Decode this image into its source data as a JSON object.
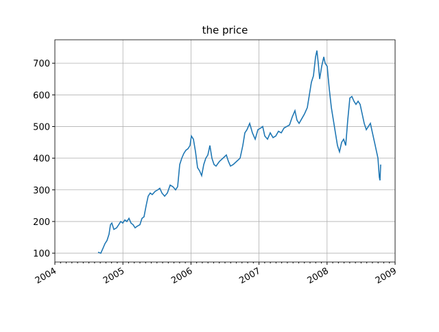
{
  "chart_data": {
    "type": "line",
    "title": "the price",
    "x": [
      2004.635,
      2004.675,
      2004.706,
      2004.736,
      2004.766,
      2004.796,
      2004.817,
      2004.837,
      2004.867,
      2004.907,
      2004.938,
      2004.968,
      2004.998,
      2005.028,
      2005.058,
      2005.089,
      2005.119,
      2005.149,
      2005.179,
      2005.21,
      2005.25,
      2005.28,
      2005.31,
      2005.341,
      2005.371,
      2005.401,
      2005.431,
      2005.472,
      2005.512,
      2005.542,
      2005.573,
      2005.613,
      2005.653,
      2005.694,
      2005.734,
      2005.774,
      2005.804,
      2005.835,
      2005.865,
      2005.895,
      2005.925,
      2005.956,
      2005.986,
      2006.006,
      2006.036,
      2006.067,
      2006.097,
      2006.127,
      2006.157,
      2006.188,
      2006.218,
      2006.248,
      2006.278,
      2006.308,
      2006.339,
      2006.369,
      2006.419,
      2006.47,
      2006.52,
      2006.55,
      2006.581,
      2006.621,
      2006.671,
      2006.722,
      2006.762,
      2006.792,
      2006.823,
      2006.863,
      2006.903,
      2006.944,
      2006.984,
      2007.024,
      2007.054,
      2007.085,
      2007.125,
      2007.165,
      2007.206,
      2007.246,
      2007.286,
      2007.327,
      2007.367,
      2007.407,
      2007.448,
      2007.488,
      2007.528,
      2007.558,
      2007.589,
      2007.629,
      2007.669,
      2007.71,
      2007.74,
      2007.77,
      2007.8,
      2007.831,
      2007.851,
      2007.871,
      2007.891,
      2007.921,
      2007.952,
      2007.972,
      2008.002,
      2008.032,
      2008.063,
      2008.093,
      2008.123,
      2008.153,
      2008.183,
      2008.214,
      2008.244,
      2008.274,
      2008.304,
      2008.335,
      2008.365,
      2008.395,
      2008.425,
      2008.456,
      2008.486,
      2008.516,
      2008.546,
      2008.577,
      2008.607,
      2008.637,
      2008.667,
      2008.698,
      2008.728,
      2008.748,
      2008.768,
      2008.778,
      2008.788
    ],
    "series": [
      {
        "color": "#1f77b4",
        "values": [
          103,
          100,
          115,
          130,
          140,
          160,
          190,
          195,
          175,
          180,
          190,
          200,
          195,
          205,
          200,
          210,
          195,
          190,
          180,
          185,
          190,
          210,
          215,
          250,
          280,
          290,
          285,
          295,
          300,
          305,
          290,
          280,
          290,
          315,
          310,
          300,
          310,
          380,
          400,
          415,
          425,
          430,
          440,
          470,
          460,
          420,
          370,
          360,
          345,
          380,
          400,
          410,
          440,
          400,
          380,
          375,
          390,
          400,
          410,
          390,
          375,
          380,
          390,
          400,
          440,
          480,
          490,
          510,
          480,
          460,
          490,
          495,
          500,
          470,
          460,
          480,
          465,
          470,
          485,
          480,
          495,
          500,
          505,
          530,
          550,
          520,
          510,
          525,
          540,
          560,
          600,
          640,
          660,
          720,
          740,
          700,
          650,
          690,
          720,
          700,
          690,
          620,
          560,
          520,
          480,
          440,
          420,
          450,
          460,
          440,
          520,
          590,
          595,
          580,
          570,
          580,
          570,
          540,
          510,
          490,
          500,
          510,
          480,
          450,
          420,
          400,
          340,
          330,
          380
        ]
      }
    ],
    "xlim": [
      2004,
      2009
    ],
    "xticks": [
      2004,
      2005,
      2006,
      2007,
      2008,
      2009
    ],
    "ylim": [
      72,
      774
    ],
    "yticks": [
      100,
      200,
      300,
      400,
      500,
      600,
      700
    ],
    "grid": true
  }
}
